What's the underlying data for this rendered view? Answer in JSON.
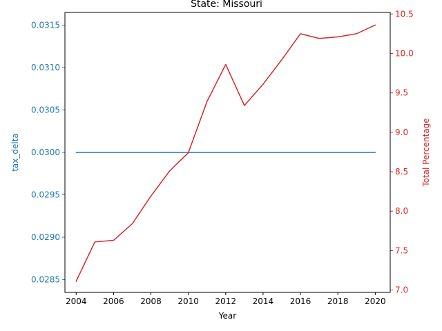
{
  "chart_data": {
    "type": "line",
    "title": "State: Missouri",
    "xlabel": "Year",
    "ylabel_left": "tax_delta",
    "ylabel_right": "Total Percentage",
    "xlim": [
      2003.4,
      2020.8
    ],
    "ylim_left": [
      0.02835,
      0.03165
    ],
    "ylim_right": [
      6.97,
      10.52
    ],
    "x_ticks": [
      "2004",
      "2006",
      "2008",
      "2010",
      "2012",
      "2014",
      "2016",
      "2018",
      "2020"
    ],
    "y_left_ticks": [
      "0.0285",
      "0.0290",
      "0.0295",
      "0.0300",
      "0.0305",
      "0.0310",
      "0.0315"
    ],
    "y_right_ticks": [
      "7.0",
      "7.5",
      "8.0",
      "8.5",
      "9.0",
      "9.5",
      "10.0",
      "10.5"
    ],
    "grid": false,
    "colors": {
      "left": "#1f77b4",
      "right": "#d62728",
      "axis": "#000000"
    },
    "series": [
      {
        "axis": "left",
        "x": [
          2004,
          2005,
          2006,
          2007,
          2008,
          2009,
          2010,
          2011,
          2012,
          2013,
          2014,
          2015,
          2016,
          2017,
          2018,
          2019,
          2020
        ],
        "values": [
          0.03,
          0.03,
          0.03,
          0.03,
          0.03,
          0.03,
          0.03,
          0.03,
          0.03,
          0.03,
          0.03,
          0.03,
          0.03,
          0.03,
          0.03,
          0.03,
          0.03
        ]
      },
      {
        "axis": "right",
        "x": [
          2004,
          2005,
          2006,
          2007,
          2008,
          2009,
          2010,
          2011,
          2012,
          2013,
          2014,
          2015,
          2016,
          2017,
          2018,
          2019,
          2020
        ],
        "values": [
          7.11,
          7.61,
          7.63,
          7.84,
          8.19,
          8.51,
          8.74,
          9.39,
          9.86,
          9.34,
          9.61,
          9.92,
          10.25,
          10.19,
          10.21,
          10.25,
          10.36
        ]
      }
    ]
  }
}
